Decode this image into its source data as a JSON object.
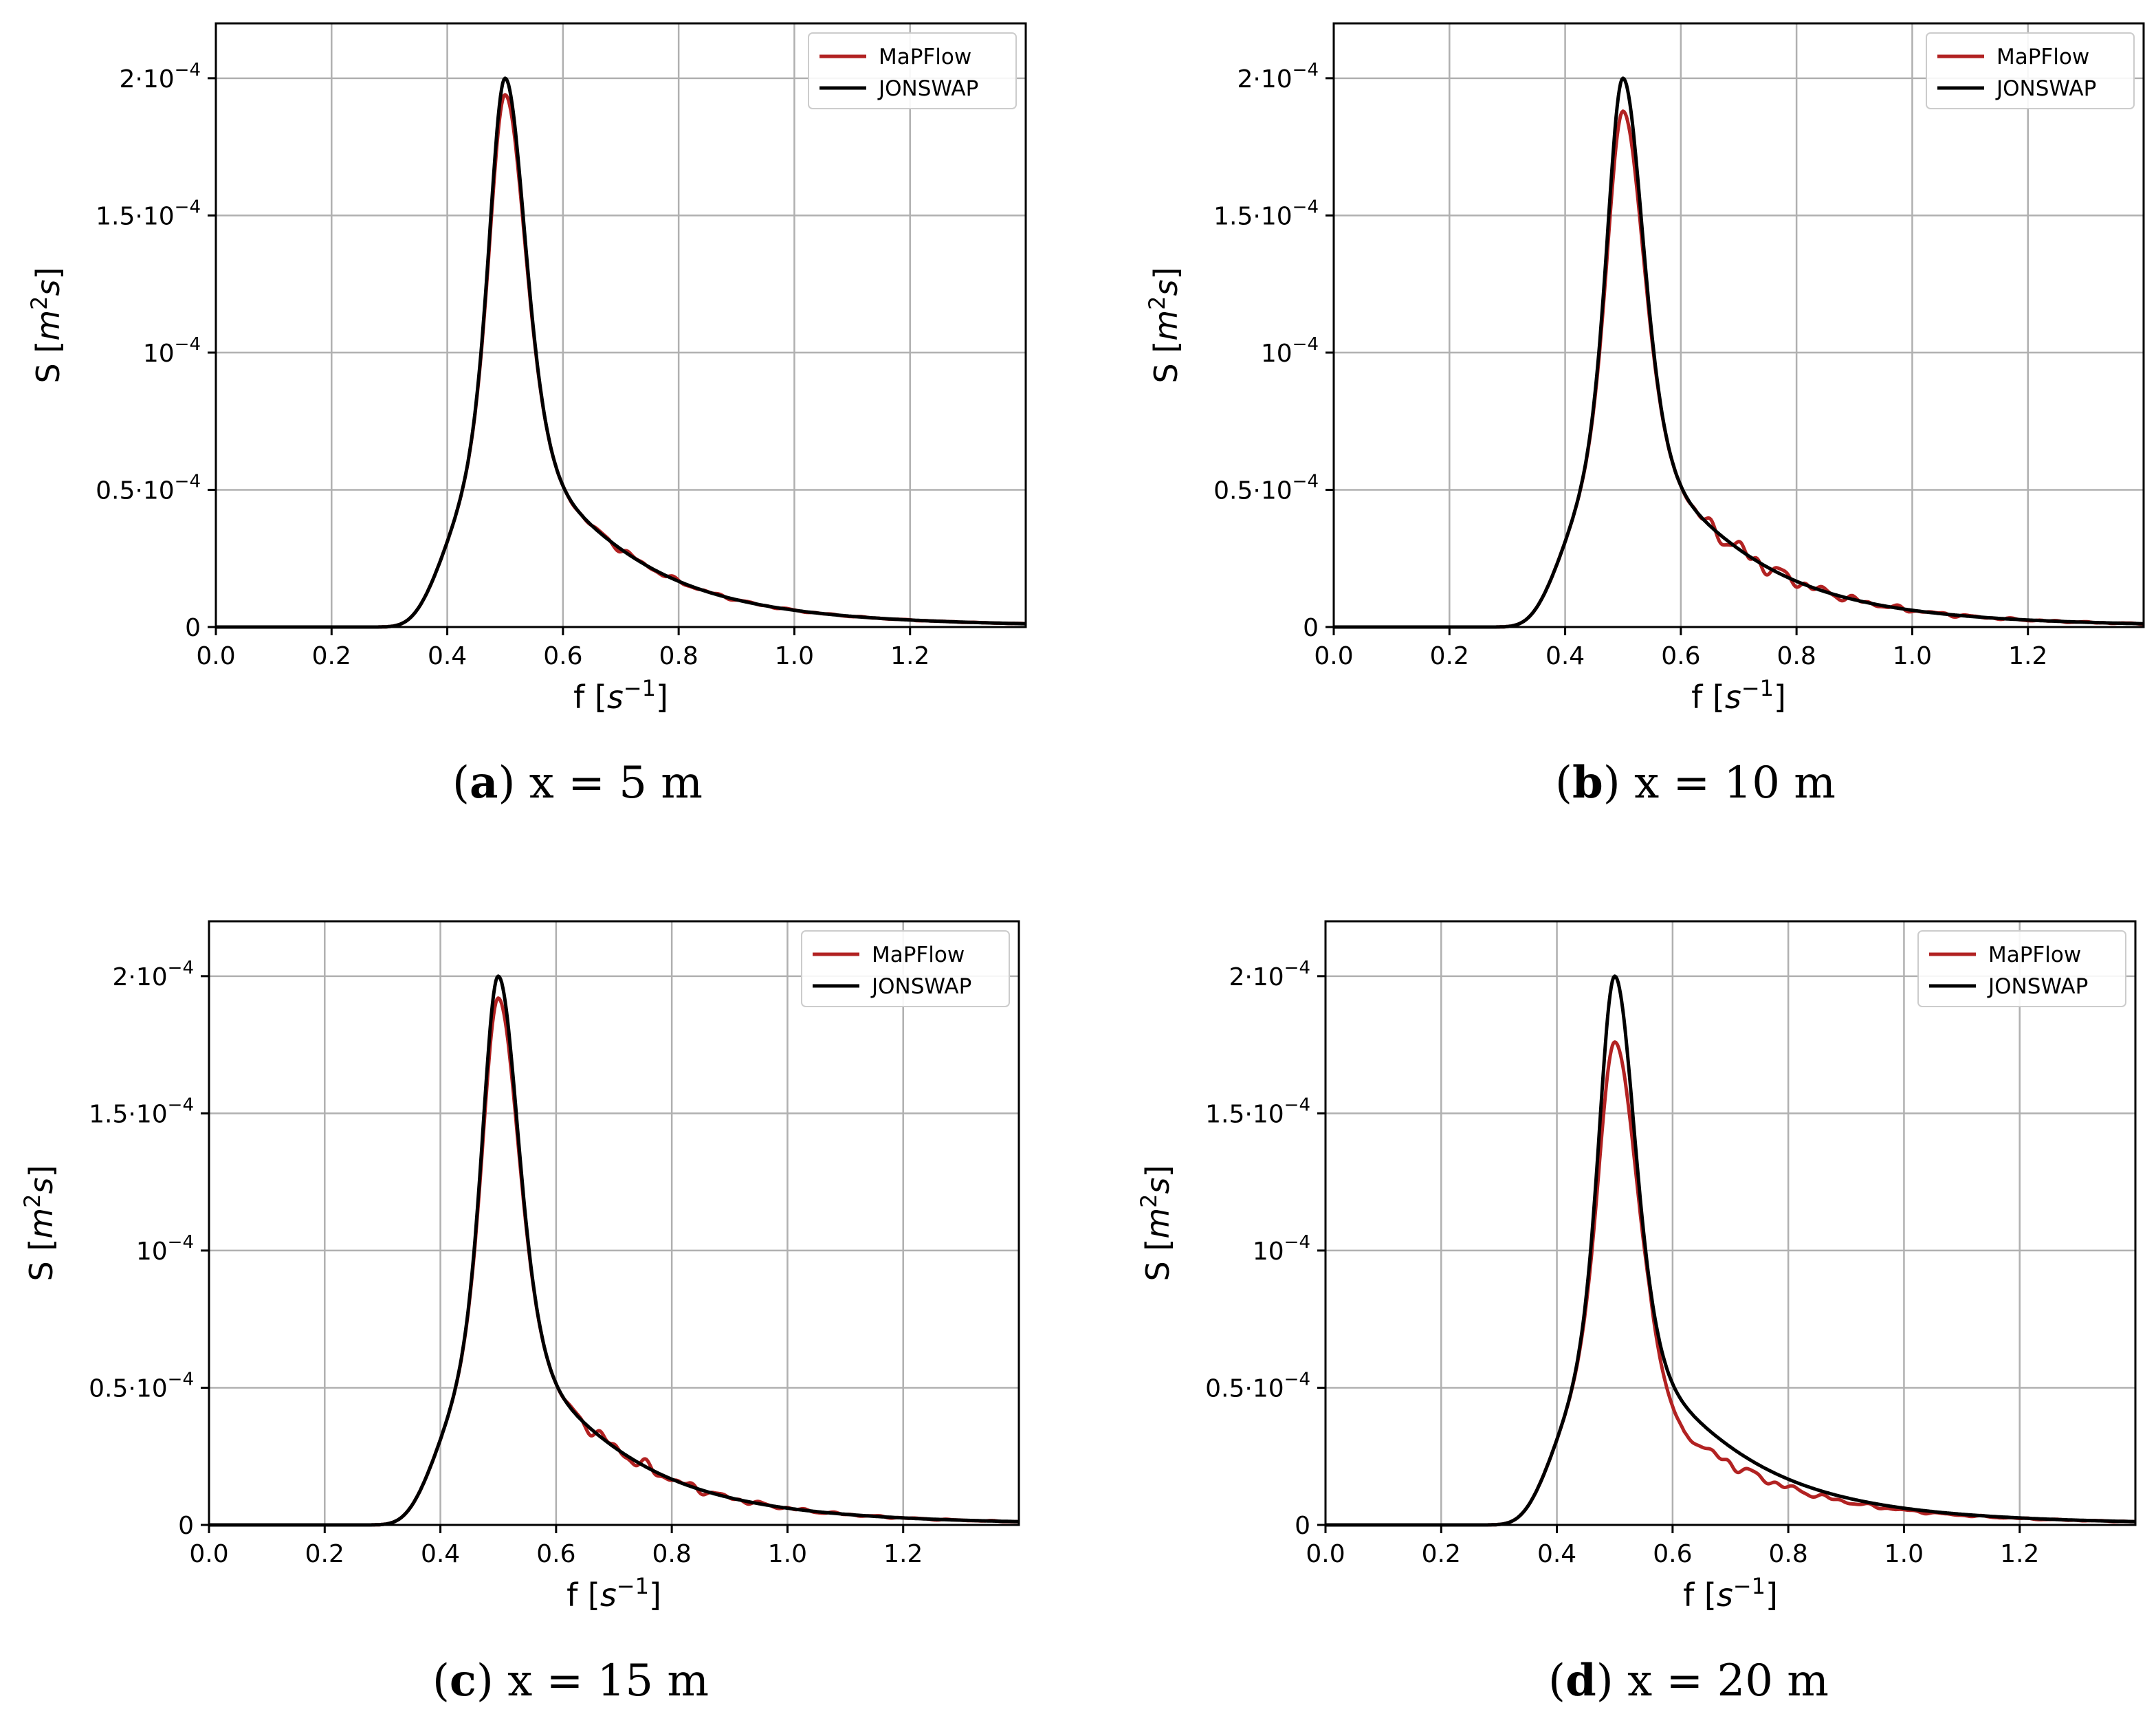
{
  "figure": {
    "panels": [
      {
        "caption_letter": "a",
        "caption_rest": " x = 5 m"
      },
      {
        "caption_letter": "b",
        "caption_rest": " x = 10 m"
      },
      {
        "caption_letter": "c",
        "caption_rest": " x = 15 m"
      },
      {
        "caption_letter": "d",
        "caption_rest": " x = 20 m"
      }
    ],
    "ylabel": {
      "prefix": "S [",
      "var": "m",
      "sup": "2",
      "var2": "s",
      "suffix": "]"
    },
    "xlabel": {
      "prefix": "f [",
      "var": "s",
      "sup": "−1",
      "suffix": "]"
    },
    "legend": [
      "MaPFlow",
      "JONSWAP"
    ],
    "colors": {
      "mapflow": "#b22222",
      "jonswap": "#000000",
      "grid": "#b0b0b0"
    }
  },
  "chart_data": [
    {
      "type": "line",
      "title": "(a) x = 5 m",
      "xlabel": "f [s^-1]",
      "ylabel": "S [m^2 s]",
      "xlim": [
        0.0,
        1.4
      ],
      "ylim": [
        0,
        0.00022
      ],
      "xticks": [
        0.0,
        0.2,
        0.4,
        0.6,
        0.8,
        1.0,
        1.2
      ],
      "xtick_labels": [
        "0.0",
        "0.2",
        "0.4",
        "0.6",
        "0.8",
        "1.0",
        "1.2"
      ],
      "yticks": [
        0,
        5e-05,
        0.0001,
        0.00015,
        0.0002
      ],
      "ytick_labels": [
        {
          "base": "0"
        },
        {
          "base": "0.5·10",
          "exp": "−4"
        },
        {
          "base": "10",
          "exp": "−4"
        },
        {
          "base": "1.5·10",
          "exp": "−4"
        },
        {
          "base": "2·10",
          "exp": "−4"
        }
      ],
      "legend_position": "top-right",
      "grid": true,
      "series": [
        {
          "name": "MaPFlow",
          "peak": 0.000194,
          "ripple": 0.15,
          "seed": 1
        },
        {
          "name": "JONSWAP",
          "peak": 0.0002,
          "fp": 0.5,
          "gamma": 3.3
        }
      ]
    },
    {
      "type": "line",
      "title": "(b) x = 10 m",
      "xlabel": "f [s^-1]",
      "ylabel": "S [m^2 s]",
      "xlim": [
        0.0,
        1.4
      ],
      "ylim": [
        0,
        0.00022
      ],
      "xticks": [
        0.0,
        0.2,
        0.4,
        0.6,
        0.8,
        1.0,
        1.2
      ],
      "xtick_labels": [
        "0.0",
        "0.2",
        "0.4",
        "0.6",
        "0.8",
        "1.0",
        "1.2"
      ],
      "yticks": [
        0,
        5e-05,
        0.0001,
        0.00015,
        0.0002
      ],
      "ytick_labels": [
        {
          "base": "0"
        },
        {
          "base": "0.5·10",
          "exp": "−4"
        },
        {
          "base": "10",
          "exp": "−4"
        },
        {
          "base": "1.5·10",
          "exp": "−4"
        },
        {
          "base": "2·10",
          "exp": "−4"
        }
      ],
      "legend_position": "top-right",
      "grid": true,
      "series": [
        {
          "name": "MaPFlow",
          "peak": 0.000188,
          "ripple": 0.45,
          "seed": 2
        },
        {
          "name": "JONSWAP",
          "peak": 0.0002,
          "fp": 0.5,
          "gamma": 3.3
        }
      ]
    },
    {
      "type": "line",
      "title": "(c) x = 15 m",
      "xlabel": "f [s^-1]",
      "ylabel": "S [m^2 s]",
      "xlim": [
        0.0,
        1.4
      ],
      "ylim": [
        0,
        0.00022
      ],
      "xticks": [
        0.0,
        0.2,
        0.4,
        0.6,
        0.8,
        1.0,
        1.2
      ],
      "xtick_labels": [
        "0.0",
        "0.2",
        "0.4",
        "0.6",
        "0.8",
        "1.0",
        "1.2"
      ],
      "yticks": [
        0,
        5e-05,
        0.0001,
        0.00015,
        0.0002
      ],
      "ytick_labels": [
        {
          "base": "0"
        },
        {
          "base": "0.5·10",
          "exp": "−4"
        },
        {
          "base": "10",
          "exp": "−4"
        },
        {
          "base": "1.5·10",
          "exp": "−4"
        },
        {
          "base": "2·10",
          "exp": "−4"
        }
      ],
      "legend_position": "top-right",
      "grid": true,
      "series": [
        {
          "name": "MaPFlow",
          "peak": 0.000192,
          "ripple": 0.35,
          "seed": 3
        },
        {
          "name": "JONSWAP",
          "peak": 0.0002,
          "fp": 0.5,
          "gamma": 3.3
        }
      ]
    },
    {
      "type": "line",
      "title": "(d) x = 20 m",
      "xlabel": "f [s^-1]",
      "ylabel": "S [m^2 s]",
      "xlim": [
        0.0,
        1.4
      ],
      "ylim": [
        0,
        0.00022
      ],
      "xticks": [
        0.0,
        0.2,
        0.4,
        0.6,
        0.8,
        1.0,
        1.2
      ],
      "xtick_labels": [
        "0.0",
        "0.2",
        "0.4",
        "0.6",
        "0.8",
        "1.0",
        "1.2"
      ],
      "yticks": [
        0,
        5e-05,
        0.0001,
        0.00015,
        0.0002
      ],
      "ytick_labels": [
        {
          "base": "0"
        },
        {
          "base": "0.5·10",
          "exp": "−4"
        },
        {
          "base": "10",
          "exp": "−4"
        },
        {
          "base": "1.5·10",
          "exp": "−4"
        },
        {
          "base": "2·10",
          "exp": "−4"
        }
      ],
      "legend_position": "top-right",
      "grid": true,
      "series": [
        {
          "name": "MaPFlow",
          "peak": 0.000176,
          "ripple": 0.3,
          "seed": 4,
          "tail_factor": 0.85
        },
        {
          "name": "JONSWAP",
          "peak": 0.0002,
          "fp": 0.5,
          "gamma": 3.3
        }
      ]
    }
  ]
}
